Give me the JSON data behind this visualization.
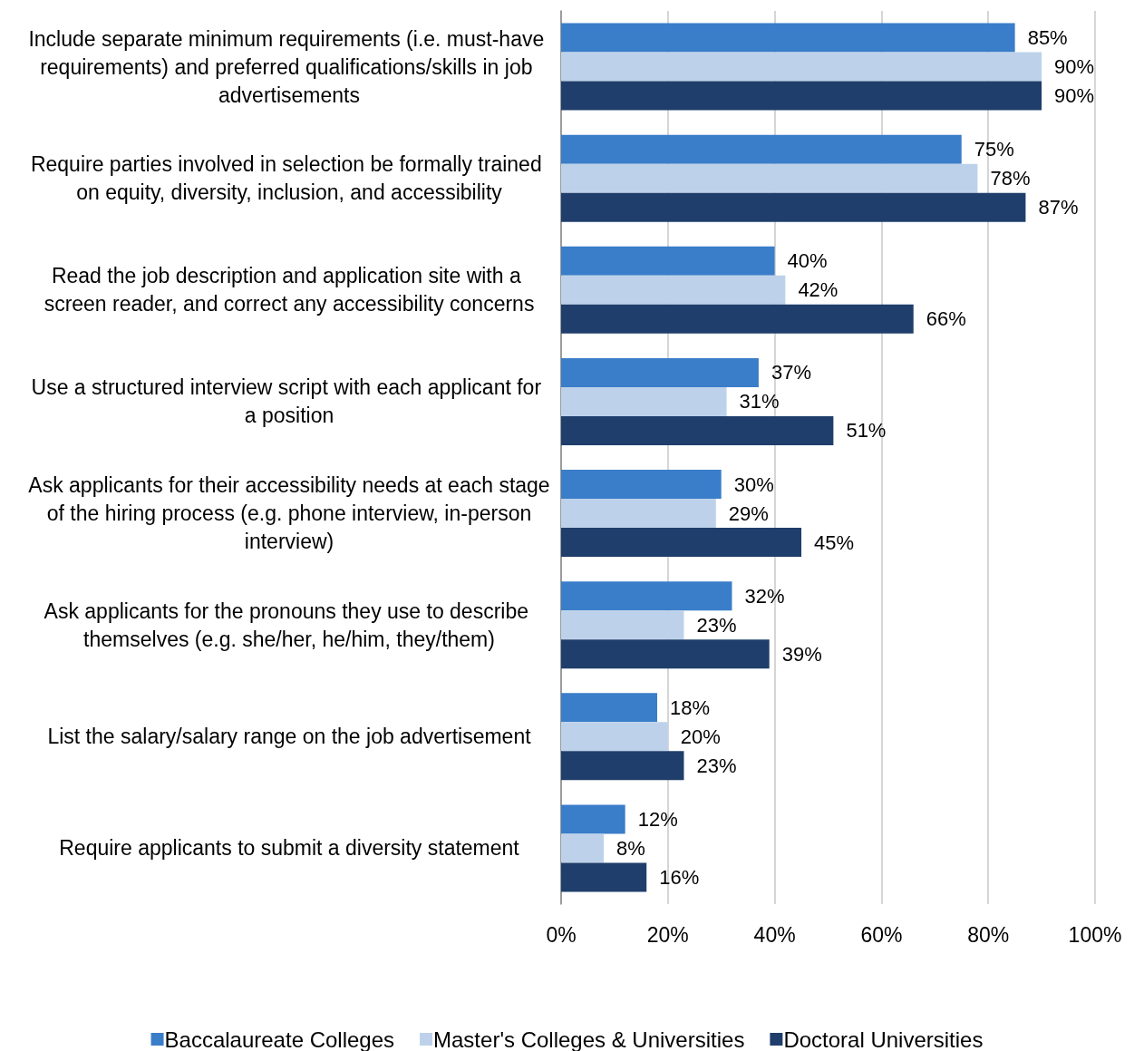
{
  "chart_data": {
    "type": "bar",
    "orientation": "horizontal",
    "categories": [
      "Include separate minimum requirements (i.e. must-have requirements) and preferred qualifications/skills in job advertisements",
      "Require parties involved in selection be formally trained on equity, diversity, inclusion, and accessibility",
      "Read the job description and application site with a screen reader, and correct any accessibility concerns",
      "Use a structured interview script with each applicant for a position",
      "Ask applicants for their accessibility needs at each stage of the hiring process (e.g. phone interview, in-person interview)",
      "Ask applicants for the pronouns they use to describe themselves (e.g. she/her, he/him, they/them)",
      "List the salary/salary range on the job advertisement",
      "Require applicants to submit a diversity statement"
    ],
    "series": [
      {
        "name": "Baccalaureate Colleges",
        "color": "#3a7dc9",
        "values": [
          85,
          75,
          40,
          37,
          30,
          32,
          18,
          12
        ],
        "value_labels": [
          "85%",
          "75%",
          "40%",
          "37%",
          "30%",
          "32%",
          "18%",
          "12%"
        ]
      },
      {
        "name": "Master's Colleges & Universities",
        "color": "#bdd2ea",
        "values": [
          90,
          78,
          42,
          31,
          29,
          23,
          20,
          8
        ],
        "value_labels": [
          "90%",
          "78%",
          "42%",
          "31%",
          "29%",
          "23%",
          "20%",
          "8%"
        ]
      },
      {
        "name": "Doctoral Universities",
        "color": "#1f3e6b",
        "values": [
          90,
          87,
          66,
          51,
          45,
          39,
          23,
          16
        ],
        "value_labels": [
          "90%",
          "87%",
          "66%",
          "51%",
          "45%",
          "39%",
          "23%",
          "16%"
        ]
      }
    ],
    "xlim": [
      0,
      100
    ],
    "xticks": [
      {
        "value": 0,
        "label": "0%"
      },
      {
        "value": 20,
        "label": "20%"
      },
      {
        "value": 40,
        "label": "40%"
      },
      {
        "value": 60,
        "label": "60%"
      },
      {
        "value": 80,
        "label": "80%"
      },
      {
        "value": 100,
        "label": "100%"
      }
    ],
    "grid": "x",
    "legend": "bottom"
  }
}
